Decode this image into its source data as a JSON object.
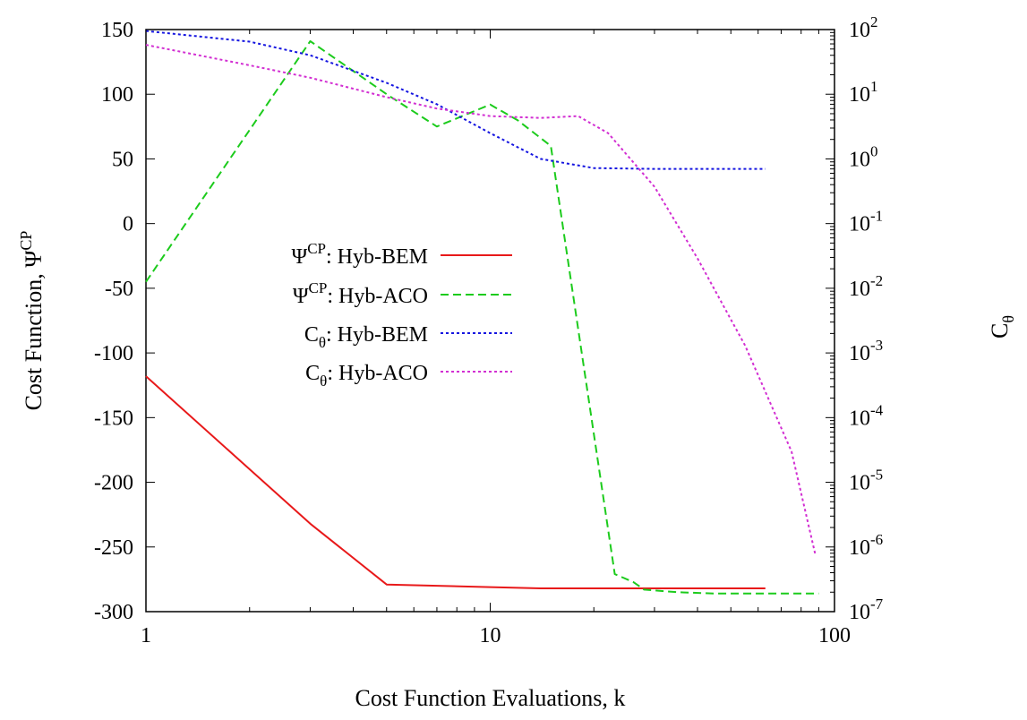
{
  "chart_data": {
    "type": "line",
    "xlabel": "Cost Function Evaluations, k",
    "ylabel_left": "Cost Function, Ψ",
    "ylabel_left_sup": "CP",
    "ylabel_right": "C",
    "ylabel_right_sub": "θ",
    "xscale": "log",
    "xlim": [
      1,
      100
    ],
    "ylim_left": [
      -300,
      150
    ],
    "ylim_right": [
      1e-07,
      100
    ],
    "yscale_right": "log",
    "grid": false,
    "legend_position": "center-left",
    "x_ticks": [
      {
        "value": 1,
        "label": "1"
      },
      {
        "value": 10,
        "label": "10"
      },
      {
        "value": 100,
        "label": "100"
      }
    ],
    "y_left_ticks": [
      {
        "value": 150,
        "label": "150"
      },
      {
        "value": 100,
        "label": "100"
      },
      {
        "value": 50,
        "label": "50"
      },
      {
        "value": 0,
        "label": "0"
      },
      {
        "value": -50,
        "label": "-50"
      },
      {
        "value": -100,
        "label": "-100"
      },
      {
        "value": -150,
        "label": "-150"
      },
      {
        "value": -200,
        "label": "-200"
      },
      {
        "value": -250,
        "label": "-250"
      },
      {
        "value": -300,
        "label": "-300"
      }
    ],
    "y_right_ticks": [
      {
        "exp": 2,
        "base": "10",
        "sup": "2"
      },
      {
        "exp": 1,
        "base": "10",
        "sup": "1"
      },
      {
        "exp": 0,
        "base": "10",
        "sup": "0"
      },
      {
        "exp": -1,
        "base": "10",
        "sup": "-1"
      },
      {
        "exp": -2,
        "base": "10",
        "sup": "-2"
      },
      {
        "exp": -3,
        "base": "10",
        "sup": "-3"
      },
      {
        "exp": -4,
        "base": "10",
        "sup": "-4"
      },
      {
        "exp": -5,
        "base": "10",
        "sup": "-5"
      },
      {
        "exp": -6,
        "base": "10",
        "sup": "-6"
      },
      {
        "exp": -7,
        "base": "10",
        "sup": "-7"
      }
    ],
    "series": [
      {
        "name": "Hyb-BEM",
        "legend_symbol": "Ψ",
        "legend_sup": "CP",
        "legend_sub": "",
        "axis": "left",
        "color": "#e8191a",
        "dash": "solid",
        "x": [
          1,
          3,
          5,
          10,
          14,
          20,
          40,
          63
        ],
        "y": [
          -118,
          -232,
          -279,
          -281,
          -282,
          -282,
          -282,
          -282
        ]
      },
      {
        "name": "Hyb-ACO",
        "legend_symbol": "Ψ",
        "legend_sup": "CP",
        "legend_sub": "",
        "axis": "left",
        "color": "#1ccb1c",
        "dash": "dashed",
        "x": [
          1,
          3,
          5,
          7,
          10,
          12,
          15,
          23,
          26,
          28,
          35,
          45,
          60,
          90
        ],
        "y": [
          -45,
          141,
          100,
          75,
          92,
          80,
          60,
          -271,
          -277,
          -283,
          -285,
          -286,
          -286,
          -286
        ]
      },
      {
        "name": "Hyb-BEM",
        "legend_symbol": "C",
        "legend_sup": "",
        "legend_sub": "θ",
        "axis": "right",
        "color": "#1515e0",
        "dash": "dotted",
        "x": [
          1,
          2,
          3,
          5,
          7,
          10,
          14,
          20,
          30,
          63
        ],
        "y": [
          95,
          65,
          40,
          15,
          7,
          2.5,
          1,
          0.72,
          0.7,
          0.7
        ]
      },
      {
        "name": "Hyb-ACO",
        "legend_symbol": "C",
        "legend_sup": "",
        "legend_sub": "θ",
        "axis": "right",
        "color": "#d22fd2",
        "dash": "dotted",
        "x": [
          1,
          2,
          3,
          5,
          7,
          10,
          14,
          18,
          22,
          30,
          40,
          55,
          75,
          88
        ],
        "y": [
          58,
          28,
          18,
          9,
          6,
          4.6,
          4.3,
          4.6,
          2.5,
          0.37,
          0.029,
          0.0013,
          3e-05,
          7.5e-07
        ]
      }
    ]
  }
}
